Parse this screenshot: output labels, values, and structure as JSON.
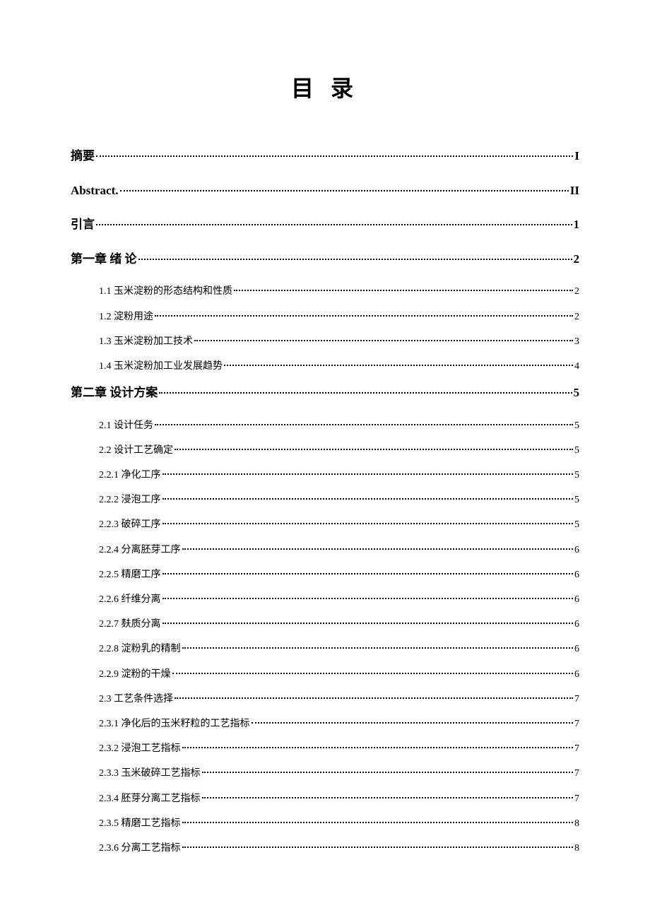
{
  "title": "目 录",
  "entries": [
    {
      "level": 0,
      "label": "摘要",
      "page": "I"
    },
    {
      "level": 0,
      "label": "Abstract.",
      "page": "II"
    },
    {
      "level": 0,
      "label": "引言",
      "page": "1"
    },
    {
      "level": 0,
      "label": "第一章 绪 论",
      "page": "2"
    },
    {
      "level": 1,
      "label": "1.1 玉米淀粉的形态结构和性质",
      "page": "2"
    },
    {
      "level": 1,
      "label": "1.2 淀粉用途",
      "page": "2"
    },
    {
      "level": 1,
      "label": "1.3 玉米淀粉加工技术",
      "page": "3"
    },
    {
      "level": 1,
      "label": "1.4 玉米淀粉加工业发展趋势",
      "page": "4"
    },
    {
      "level": 0,
      "label": "第二章 设计方案",
      "page": "5"
    },
    {
      "level": 1,
      "label": "2.1 设计任务",
      "page": "5"
    },
    {
      "level": 1,
      "label": "2.2 设计工艺确定",
      "page": "5"
    },
    {
      "level": 1,
      "label": "2.2.1 净化工序",
      "page": "5"
    },
    {
      "level": 1,
      "label": "2.2.2 浸泡工序",
      "page": "5"
    },
    {
      "level": 1,
      "label": "2.2.3 破碎工序",
      "page": "5"
    },
    {
      "level": 1,
      "label": "2.2.4 分离胚芽工序",
      "page": "6"
    },
    {
      "level": 1,
      "label": "2.2.5 精磨工序",
      "page": "6"
    },
    {
      "level": 1,
      "label": "2.2.6 纤维分离",
      "page": "6"
    },
    {
      "level": 1,
      "label": "2.2.7 麸质分离",
      "page": "6"
    },
    {
      "level": 1,
      "label": "2.2.8 淀粉乳的精制",
      "page": "6"
    },
    {
      "level": 1,
      "label": "2.2.9 淀粉的干燥",
      "page": "6"
    },
    {
      "level": 1,
      "label": "2.3 工艺条件选择",
      "page": "7"
    },
    {
      "level": 1,
      "label": "2.3.1 净化后的玉米籽粒的工艺指标",
      "page": "7"
    },
    {
      "level": 1,
      "label": "2.3.2 浸泡工艺指标",
      "page": "7"
    },
    {
      "level": 1,
      "label": "2.3.3 玉米破碎工艺指标",
      "page": "7"
    },
    {
      "level": 1,
      "label": "2.3.4 胚芽分离工艺指标",
      "page": "7"
    },
    {
      "level": 1,
      "label": "2.3.5 精磨工艺指标",
      "page": "8"
    },
    {
      "level": 1,
      "label": "2.3.6 分离工艺指标",
      "page": "8"
    }
  ]
}
